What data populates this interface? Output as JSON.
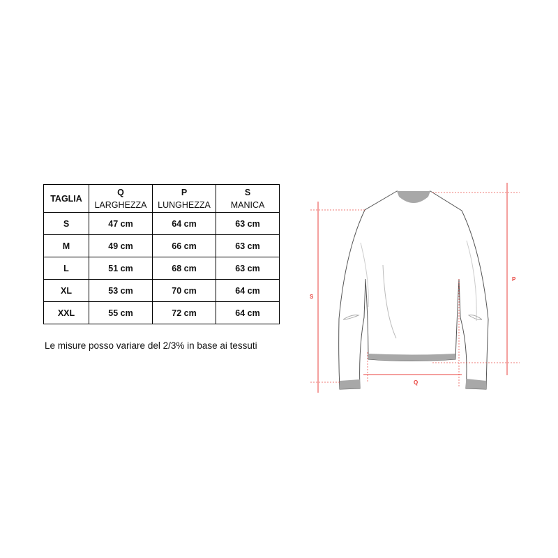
{
  "table": {
    "headers": [
      {
        "letter": "",
        "label": "TAGLIA"
      },
      {
        "letter": "Q",
        "label": "LARGHEZZA"
      },
      {
        "letter": "P",
        "label": "LUNGHEZZA"
      },
      {
        "letter": "S",
        "label": "MANICA"
      }
    ],
    "rows": [
      [
        "S",
        "47 cm",
        "64 cm",
        "63 cm"
      ],
      [
        "M",
        "49 cm",
        "66 cm",
        "63 cm"
      ],
      [
        "L",
        "51 cm",
        "68 cm",
        "63 cm"
      ],
      [
        "XL",
        "53 cm",
        "70 cm",
        "64 cm"
      ],
      [
        "XXL",
        "55 cm",
        "72 cm",
        "64 cm"
      ]
    ]
  },
  "note": "Le misure posso variare del 2/3% in base ai tessuti",
  "diagram": {
    "labels": {
      "sleeve": "S",
      "length": "P",
      "width": "Q"
    },
    "measure_color": "#e8413c",
    "rib_color": "#a8a8a8"
  }
}
